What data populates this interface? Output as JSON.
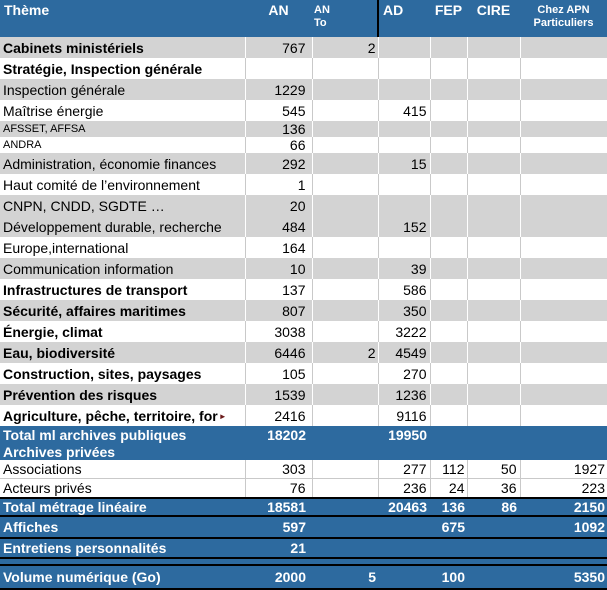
{
  "colors": {
    "header_blue": "#2D6A9F",
    "row_gray": "#D3D3D3",
    "grid_line": "#C9C9C9",
    "black_rule": "#000000",
    "text": "#000000",
    "text_on_blue": "#FFFFFF"
  },
  "table": {
    "truncation_marker": "►",
    "columns": [
      {
        "key": "theme",
        "label": "Thème"
      },
      {
        "key": "an",
        "label": "AN"
      },
      {
        "key": "an_to",
        "label": "AN\nTo"
      },
      {
        "key": "ad",
        "label": "AD"
      },
      {
        "key": "fep",
        "label": "FEP"
      },
      {
        "key": "cire",
        "label": "CIRE"
      },
      {
        "key": "chez",
        "label": "Chez APN\nParticuliers"
      }
    ],
    "rows": [
      {
        "label": "Cabinets ministériels",
        "variant": "normal",
        "bg": "gray",
        "bold": true,
        "an": "767",
        "an_to": "2"
      },
      {
        "label": "Stratégie, Inspection générale",
        "variant": "normal",
        "bg": "white",
        "bold": true
      },
      {
        "label": "Inspection générale",
        "variant": "normal",
        "bg": "gray",
        "an": "1229"
      },
      {
        "label": "Maîtrise énergie",
        "variant": "normal",
        "bg": "white",
        "an": "545",
        "ad": "415"
      },
      {
        "label": "AFSSET, AFFSA",
        "variant": "small",
        "bg": "gray",
        "an": "136"
      },
      {
        "label": "ANDRA",
        "variant": "small",
        "bg": "white",
        "an": "66"
      },
      {
        "label": "Administration, économie finances",
        "variant": "normal",
        "bg": "gray",
        "an": "292",
        "ad": "15"
      },
      {
        "label": "Haut comité de l’environnement",
        "variant": "normal",
        "bg": "white",
        "an": "1"
      },
      {
        "label": "CNPN, CNDD, SGDTE …",
        "variant": "normal",
        "bg": "gray",
        "an": "20"
      },
      {
        "label": "Développement durable, recherche",
        "variant": "normal",
        "bg": "gray",
        "an": "484",
        "ad": "152"
      },
      {
        "label": "Europe,international",
        "variant": "normal",
        "bg": "white",
        "an": "164"
      },
      {
        "label": "Communication information",
        "variant": "normal",
        "bg": "gray",
        "an": "10",
        "ad": "39"
      },
      {
        "label": "Infrastructures de transport",
        "variant": "normal",
        "bg": "white",
        "bold": true,
        "an": "137",
        "ad": "586"
      },
      {
        "label": "Sécurité, affaires maritimes",
        "variant": "normal",
        "bg": "gray",
        "bold": true,
        "an": "807",
        "ad": "350"
      },
      {
        "label": "Énergie, climat",
        "variant": "normal",
        "bg": "white",
        "bold": true,
        "an": "3038",
        "ad": "3222"
      },
      {
        "label": "Eau, biodiversité",
        "variant": "normal",
        "bg": "gray",
        "bold": true,
        "an": "6446",
        "an_to": "2",
        "ad": "4549"
      },
      {
        "label": "Construction, sites, paysages",
        "variant": "normal",
        "bg": "white",
        "bold": true,
        "an": "105",
        "ad": "270"
      },
      {
        "label": "Prévention des risques",
        "variant": "normal",
        "bg": "gray",
        "bold": true,
        "an": "1539",
        "ad": "1236"
      },
      {
        "label": "Agriculture, pêche, territoire, for",
        "variant": "normal",
        "bg": "white",
        "bold": true,
        "truncated": true,
        "an": "2416",
        "ad": "9116"
      },
      {
        "label": "Total ml archives publiques",
        "variant": "total",
        "bg": "blue",
        "an": "18202",
        "ad": "19950"
      },
      {
        "label": "Archives privées",
        "variant": "total-short",
        "bg": "blue"
      },
      {
        "label": "Associations",
        "variant": "private",
        "bg": "white",
        "an": "303",
        "ad": "277",
        "fep": "112",
        "cire": "50",
        "chez": "1927"
      },
      {
        "label": "Acteurs privés",
        "variant": "private",
        "bg": "white",
        "an": "76",
        "ad": "236",
        "fep": "24",
        "cire": "36",
        "chez": "223"
      },
      {
        "label": "Total métrage linéaire",
        "variant": "total-short",
        "bg": "blue",
        "bt": true,
        "an": "18581",
        "ad": "20463",
        "fep": "136",
        "cire": "86",
        "chez": "2150"
      },
      {
        "label": "Affiches",
        "variant": "total-mid",
        "bg": "blue",
        "bt": true,
        "an": "597",
        "fep": "675",
        "chez": "1092"
      },
      {
        "label": "Entretiens personnalités",
        "variant": "total",
        "bg": "blue",
        "bt": true,
        "an": "21"
      },
      {
        "label": "",
        "variant": "spacer",
        "bg": "blue",
        "bt": true
      },
      {
        "label": "Volume numérique (Go)",
        "variant": "total-tall",
        "bg": "blue",
        "bt": true,
        "an": "2000",
        "an_to": "5",
        "fep": "100",
        "chez": "5350"
      }
    ]
  }
}
